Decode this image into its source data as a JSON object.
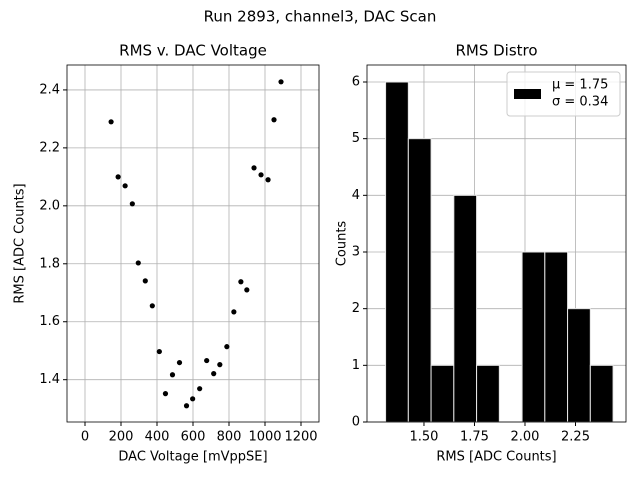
{
  "title": "Run 2893, channel3, DAC Scan",
  "chart_data": [
    {
      "type": "scatter",
      "title": "RMS v. DAC Voltage",
      "xlabel": "DAC Voltage [mVppSE]",
      "ylabel": "RMS [ADC Counts]",
      "color": "#000000",
      "grid": true,
      "x": [
        145,
        184,
        223,
        263,
        296,
        335,
        374,
        413,
        447,
        486,
        525,
        564,
        598,
        637,
        676,
        715,
        749,
        788,
        827,
        866,
        899,
        939,
        978,
        1017,
        1050,
        1089
      ],
      "values": [
        2.29,
        2.1,
        2.069,
        2.007,
        1.803,
        1.741,
        1.655,
        1.497,
        1.352,
        1.417,
        1.459,
        1.31,
        1.334,
        1.369,
        1.466,
        1.421,
        1.452,
        1.514,
        1.634,
        1.738,
        1.71,
        2.131,
        2.107,
        2.09,
        2.297,
        2.428
      ],
      "xlim": [
        -100,
        1300
      ],
      "xticks": [
        0,
        200,
        400,
        600,
        800,
        1000,
        1200
      ],
      "ylim": [
        1.254,
        2.486
      ],
      "yticks": [
        1.4,
        1.6,
        1.8,
        {
          "value": 2,
          "label": "2.0"
        },
        2.2,
        2.4
      ]
    },
    {
      "type": "histogram",
      "title": "RMS Distro",
      "xlabel": "RMS [ADC Counts]",
      "ylabel": "Counts",
      "color": "#000000",
      "grid": true,
      "bins": [
        1.31,
        1.4226,
        1.5352,
        1.6478,
        1.7604,
        1.873,
        1.9856,
        2.0982,
        2.2108,
        2.3234,
        2.436
      ],
      "values": [
        6,
        5,
        1,
        4,
        1,
        0,
        3,
        3,
        2,
        1
      ],
      "xlim": [
        1.218,
        2.5
      ],
      "xticks": [
        {
          "value": 1.5,
          "label": "1.50"
        },
        {
          "value": 1.75,
          "label": "1.75"
        },
        {
          "value": 2,
          "label": "2.00"
        },
        {
          "value": 2.25,
          "label": "2.25"
        }
      ],
      "ylim": [
        0,
        6.3
      ],
      "yticks": [
        0,
        1,
        2,
        3,
        4,
        5,
        6
      ],
      "legend": {
        "position": "upper right",
        "entries": [
          "μ = 1.75",
          "σ = 0.34"
        ]
      }
    }
  ]
}
